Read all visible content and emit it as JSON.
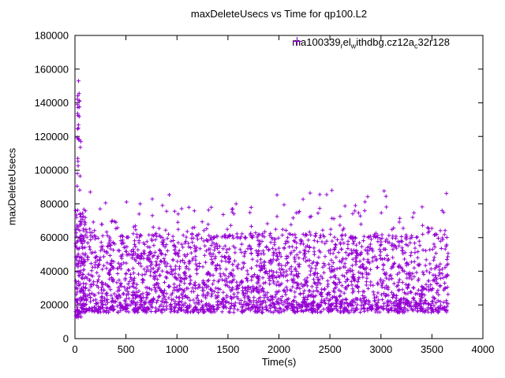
{
  "chart_data": {
    "type": "scatter",
    "title": "maxDeleteUsecs vs Time for qp100.L2",
    "xlabel": "Time(s)",
    "ylabel": "maxDeleteUsecs",
    "xlim": [
      0,
      4000
    ],
    "ylim": [
      0,
      180000
    ],
    "xticks": [
      0,
      500,
      1000,
      1500,
      2000,
      2500,
      3000,
      3500,
      4000
    ],
    "yticks": [
      0,
      20000,
      40000,
      60000,
      80000,
      100000,
      120000,
      140000,
      160000,
      180000
    ],
    "series_name": "ma100339_rel_withdbg.cz12a_c32r128",
    "legend_segments": [
      {
        "text": "ma100339",
        "sub": false
      },
      {
        "text": "r",
        "sub": true
      },
      {
        "text": "el",
        "sub": false
      },
      {
        "text": "w",
        "sub": true
      },
      {
        "text": "ithdbg.cz12a",
        "sub": false
      },
      {
        "text": "c",
        "sub": true
      },
      {
        "text": "32r128",
        "sub": false
      }
    ],
    "marker": "plus",
    "color": "#9400D3",
    "legend_position": "top-right-inside",
    "grid": false,
    "seed": 1337,
    "point_clusters": [
      {
        "name": "main-band",
        "x": [
          8,
          3660
        ],
        "y": [
          15500,
          62000
        ],
        "count": 2300,
        "y_bias_power": 1.25
      },
      {
        "name": "lower-edge",
        "x": [
          8,
          3660
        ],
        "y": [
          16500,
          23000
        ],
        "count": 240,
        "y_bias_power": 1.0
      },
      {
        "name": "upper-sparse",
        "x": [
          60,
          3660
        ],
        "y": [
          60000,
          79000
        ],
        "count": 150,
        "y_bias_power": 1.6
      },
      {
        "name": "high-outliers",
        "x": [
          100,
          3650
        ],
        "y": [
          79000,
          88000
        ],
        "count": 14,
        "y_bias_power": 1.0
      },
      {
        "name": "startup-column",
        "x": [
          5,
          110
        ],
        "y": [
          13000,
          78000
        ],
        "count": 110,
        "y_bias_power": 1.0
      },
      {
        "name": "startup-spike",
        "x": [
          22,
          60
        ],
        "y": [
          88000,
          152000
        ],
        "count": 20,
        "y_bias_power": 1.0
      },
      {
        "name": "very-low-start",
        "x": [
          5,
          60
        ],
        "y": [
          12500,
          15500
        ],
        "count": 12,
        "y_bias_power": 1.0
      }
    ],
    "notable_points": [
      [
        35,
        153000
      ],
      [
        40,
        145500
      ],
      [
        30,
        132500
      ],
      [
        33,
        125000
      ],
      [
        45,
        118000
      ],
      [
        28,
        107000
      ],
      [
        50,
        96500
      ],
      [
        22,
        90500
      ],
      [
        150,
        87000
      ],
      [
        300,
        80500
      ],
      [
        640,
        80000
      ],
      [
        1580,
        80000
      ],
      [
        2050,
        79500
      ],
      [
        2750,
        79000
      ],
      [
        3050,
        84500
      ],
      [
        3600,
        76000
      ],
      [
        3615,
        75000
      ]
    ]
  }
}
